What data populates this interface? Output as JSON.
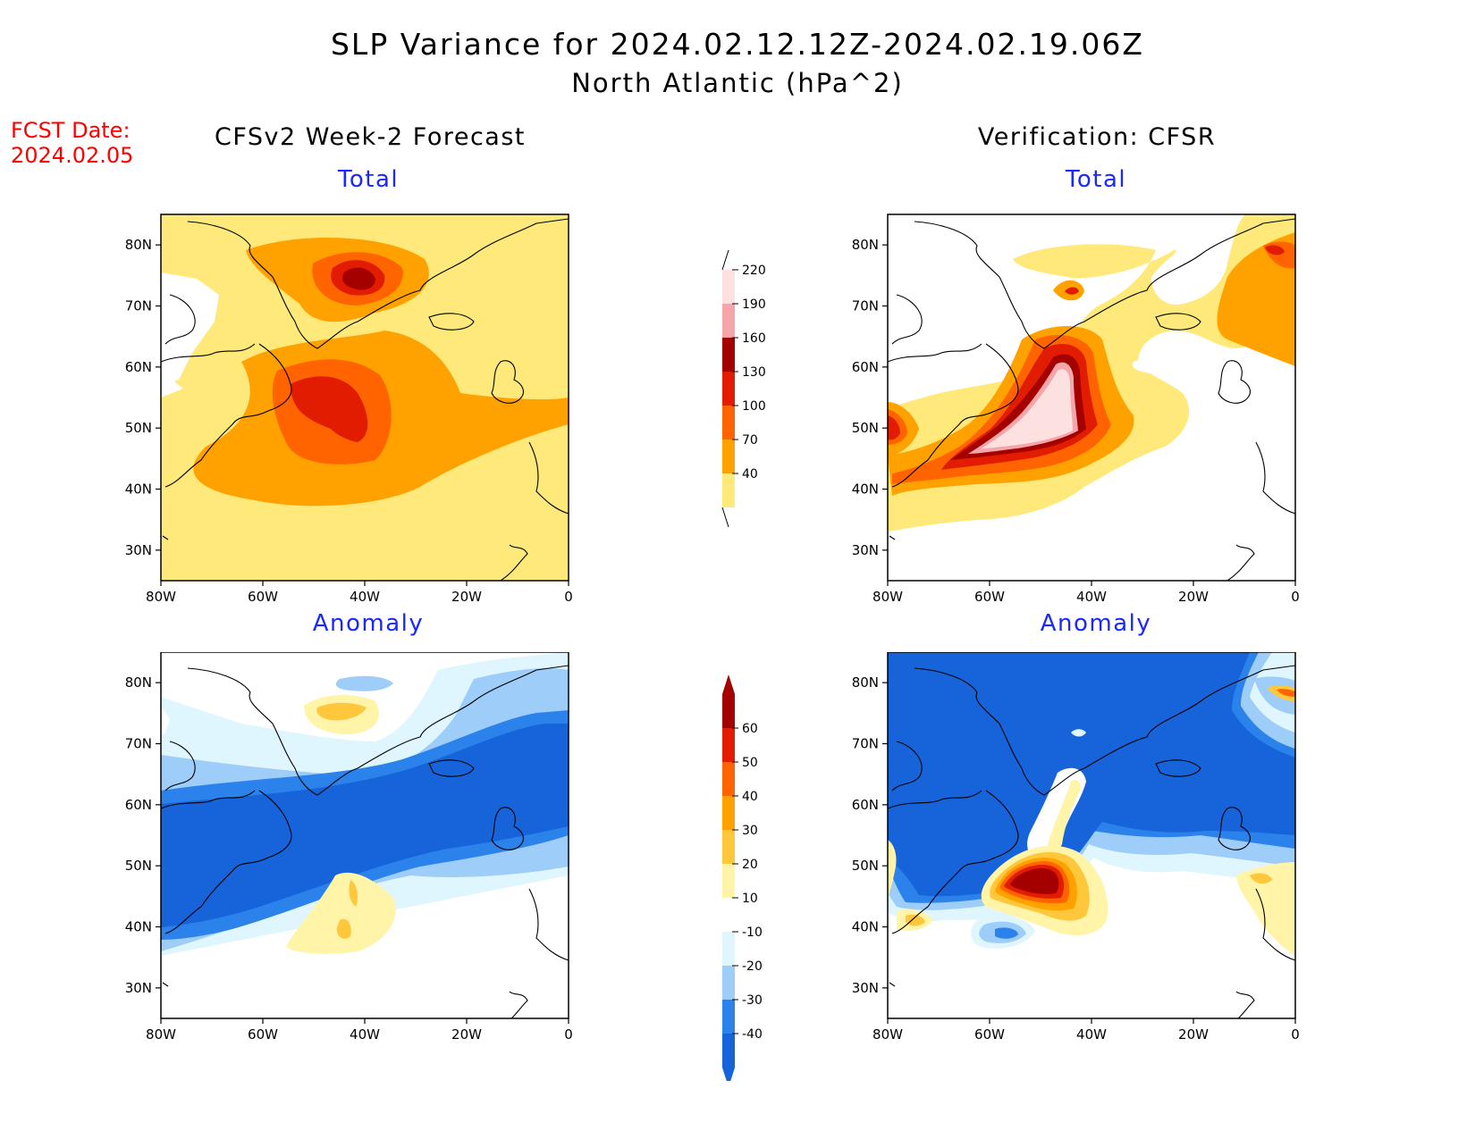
{
  "title_line1": "SLP Variance for 2024.02.12.12Z-2024.02.19.06Z",
  "title_line2": "North Atlantic (hPa^2)",
  "fcst_label": "FCST Date:",
  "fcst_date": "2024.02.05",
  "left_column_title": "CFSv2 Week-2 Forecast",
  "right_column_title": "Verification: CFSR",
  "panels": {
    "fcst_total": {
      "title": "Total"
    },
    "fcst_anom": {
      "title": "Anomaly"
    },
    "verif_total": {
      "title": "Total"
    },
    "verif_anom": {
      "title": "Anomaly"
    }
  },
  "lat_ticks": [
    "80N",
    "70N",
    "60N",
    "50N",
    "40N",
    "30N"
  ],
  "lat_values": [
    80,
    70,
    60,
    50,
    40,
    30
  ],
  "lon_ticks": [
    "80W",
    "60W",
    "40W",
    "20W",
    "0"
  ],
  "lon_values": [
    -80,
    -60,
    -40,
    -20,
    0
  ],
  "map_extent": {
    "lon_min": -80,
    "lon_max": 0,
    "lat_min": 25,
    "lat_max": 85
  },
  "total_colorbar": {
    "labels": [
      "40",
      "70",
      "100",
      "130",
      "160",
      "190",
      "220"
    ],
    "colors": [
      "#ffe97a",
      "#ffa200",
      "#ff6400",
      "#e11c00",
      "#a50000",
      "#f4a6ab",
      "#fde0e0"
    ]
  },
  "anomaly_colorbar": {
    "labels": [
      "-40",
      "-30",
      "-20",
      "-10",
      "10",
      "20",
      "30",
      "40",
      "50",
      "60"
    ],
    "colors": [
      "#1763d9",
      "#2a82ea",
      "#9dcdf8",
      "#e0f6ff",
      "#ffffff",
      "#fff4a8",
      "#ffc73b",
      "#ffa200",
      "#ff6400",
      "#e11c00",
      "#a50000"
    ]
  },
  "colors": {
    "title_red": "#ff0000",
    "subtitle_blue": "#1a28ff"
  }
}
